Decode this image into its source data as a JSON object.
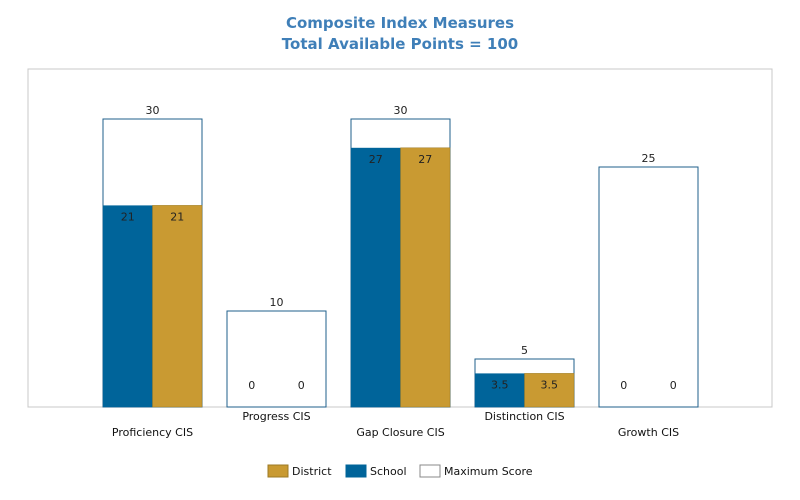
{
  "chart_data": {
    "type": "bar",
    "title": "Composite Index Measures",
    "subtitle": "Total Available Points = 100",
    "categories": [
      "Proficiency CIS",
      "Progress CIS",
      "Gap Closure CIS",
      "Distinction CIS",
      "Growth CIS"
    ],
    "series": [
      {
        "name": "School",
        "values": [
          21,
          0,
          27,
          3.5,
          0
        ],
        "color": "#00649a"
      },
      {
        "name": "District",
        "values": [
          21,
          0,
          27,
          3.5,
          0
        ],
        "color": "#c99a32"
      },
      {
        "name": "Maximum Score",
        "values": [
          30,
          10,
          30,
          5,
          25
        ],
        "color": "#ffffff",
        "stroke": "#1f5f8b"
      }
    ],
    "value_labels": {
      "school": [
        "21",
        "0",
        "27",
        "3.5",
        "0"
      ],
      "district": [
        "21",
        "0",
        "27",
        "3.5",
        "0"
      ],
      "maximum": [
        "30",
        "10",
        "30",
        "5",
        "25"
      ]
    },
    "legend": [
      "District",
      "School",
      "Maximum Score"
    ],
    "legend_position": "bottom",
    "ylim": [
      0,
      35
    ],
    "grid": false
  }
}
